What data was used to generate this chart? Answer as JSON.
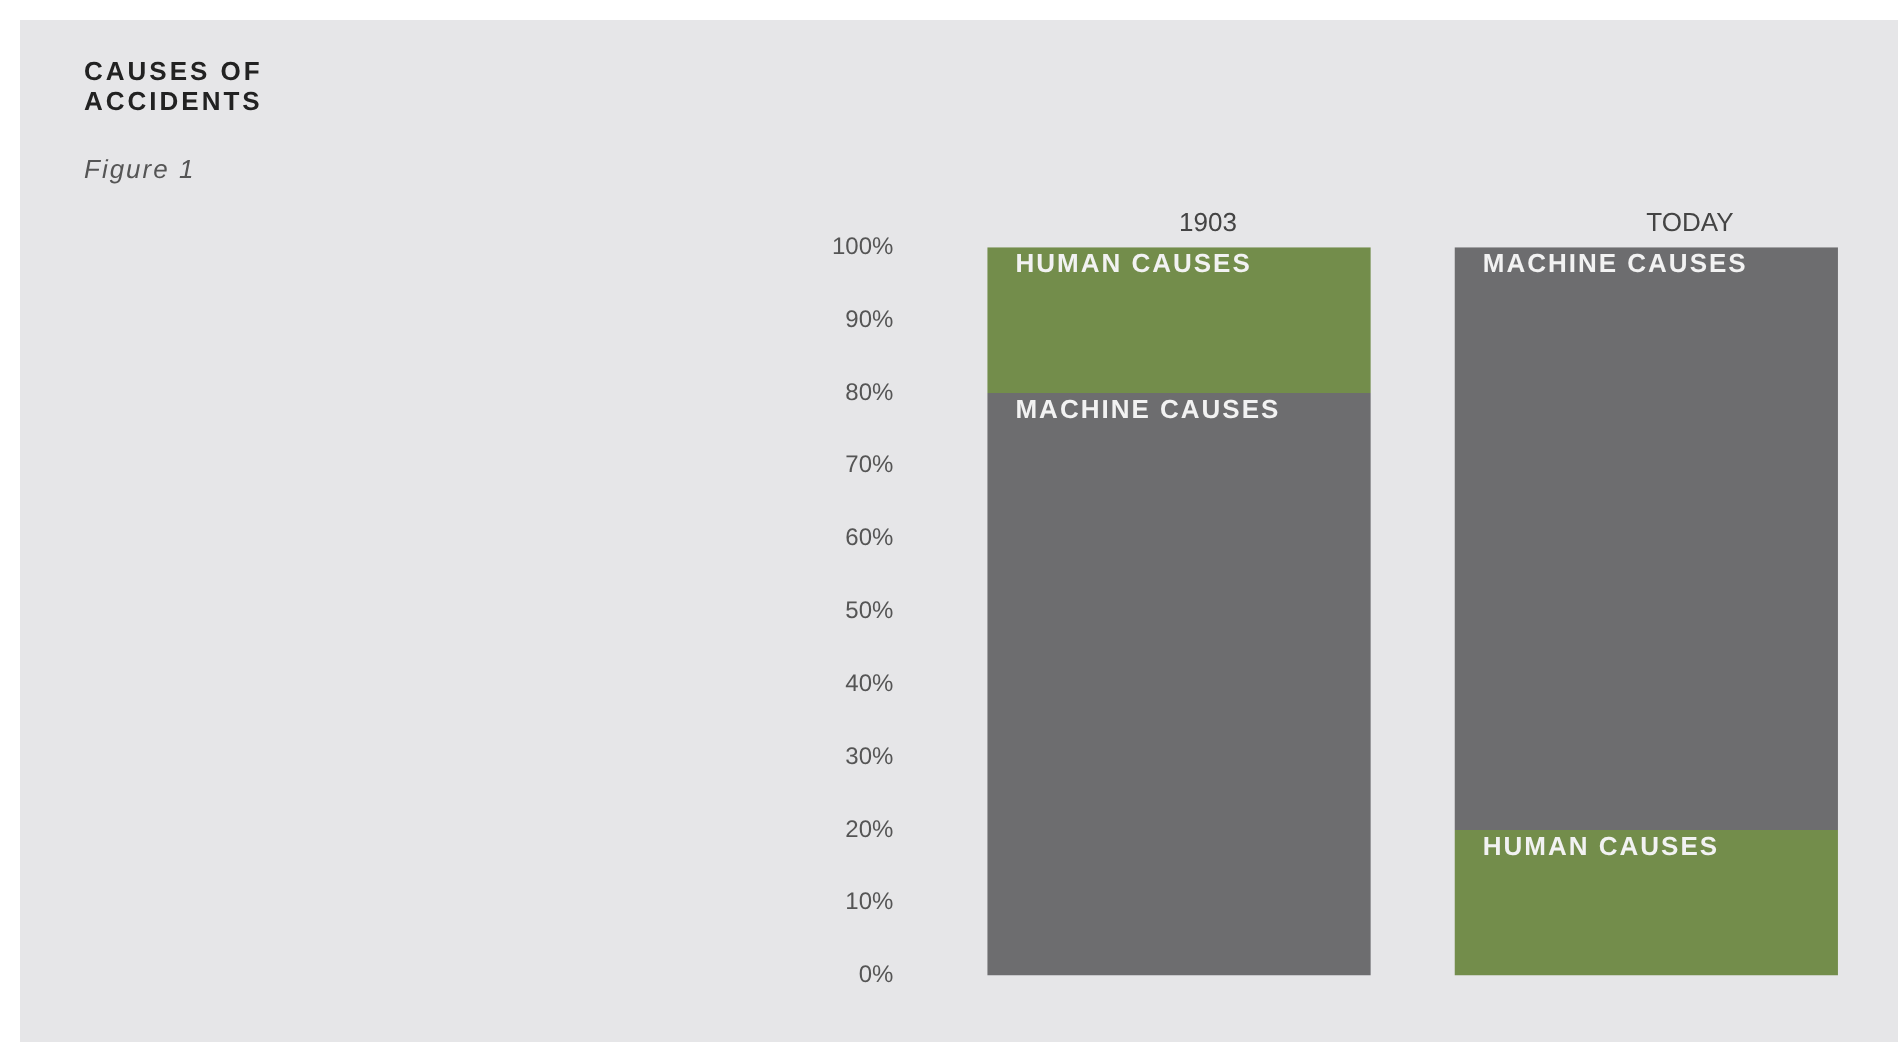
{
  "chart_data": {
    "type": "bar",
    "title": "CAUSES OF\nACCIDENTS",
    "subtitle": "Figure 1",
    "stacked": true,
    "grid": false,
    "legend": false,
    "categories": [
      "1903",
      "TODAY"
    ],
    "series": [
      {
        "colors": [
          "#6d6d6f",
          "#738d4b"
        ],
        "values": [
          80,
          20
        ],
        "value_labels": [
          "MACHINE CAUSES",
          "HUMAN CAUSES"
        ]
      },
      {
        "colors": [
          "#738d4b",
          "#6d6d6f"
        ],
        "values": [
          20,
          80
        ],
        "value_labels": [
          "HUMAN CAUSES",
          "MACHINE CAUSES"
        ]
      }
    ],
    "ylim": [
      0,
      100
    ],
    "yticks": [
      {
        "value": 0,
        "label": "0%"
      },
      {
        "value": 10,
        "label": "10%"
      },
      {
        "value": 20,
        "label": "20%"
      },
      {
        "value": 30,
        "label": "30%"
      },
      {
        "value": 40,
        "label": "40%"
      },
      {
        "value": 50,
        "label": "50%"
      },
      {
        "value": 60,
        "label": "60%"
      },
      {
        "value": 70,
        "label": "70%"
      },
      {
        "value": 80,
        "label": "80%"
      },
      {
        "value": 90,
        "label": "90%"
      },
      {
        "value": 100,
        "label": "100%"
      }
    ]
  }
}
